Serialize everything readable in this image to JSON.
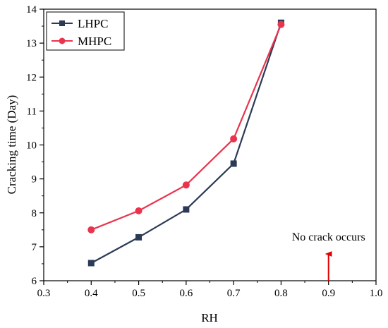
{
  "chart_data": {
    "type": "line",
    "title": "",
    "xlabel": "RH",
    "ylabel": "Cracking time (Day)",
    "xlim": [
      0.3,
      1.0
    ],
    "ylim": [
      6,
      14
    ],
    "xticks": [
      0.3,
      0.4,
      0.5,
      0.6,
      0.7,
      0.8,
      0.9,
      1.0
    ],
    "yticks": [
      6,
      7,
      8,
      9,
      10,
      11,
      12,
      13,
      14
    ],
    "xtick_labels": [
      "0.3",
      "0.4",
      "0.5",
      "0.6",
      "0.7",
      "0.8",
      "0.9",
      "1.0"
    ],
    "ytick_labels": [
      "6",
      "7",
      "8",
      "9",
      "10",
      "11",
      "12",
      "13",
      "14"
    ],
    "grid": false,
    "legend_position": "top-left",
    "x": [
      0.4,
      0.5,
      0.6,
      0.7,
      0.8
    ],
    "series": [
      {
        "name": "LHPC",
        "values": [
          6.52,
          7.28,
          8.1,
          9.45,
          13.6
        ],
        "color": "#2b3a55",
        "marker": "square"
      },
      {
        "name": "MHPC",
        "values": [
          7.5,
          8.06,
          8.82,
          10.18,
          13.55
        ],
        "color": "#e8344e",
        "marker": "circle"
      }
    ],
    "annotation": {
      "text": "No crack occurs",
      "x": 0.9,
      "arrow_color": "#e00000"
    }
  }
}
